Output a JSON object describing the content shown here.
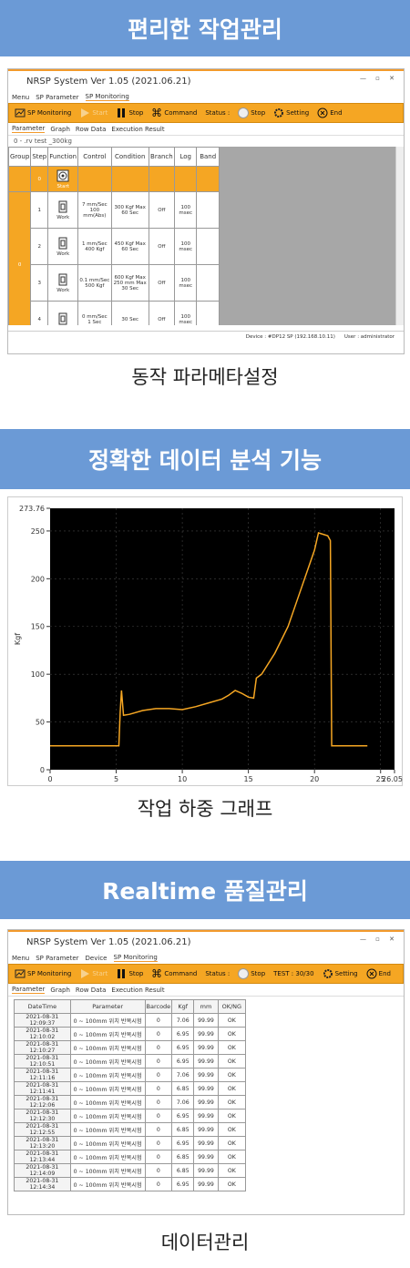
{
  "sections": [
    {
      "banner": "편리한 작업관리",
      "window": {
        "title": "NRSP System Ver 1.05 (2021.06.21)",
        "menu": [
          "Menu",
          "SP Parameter",
          "SP Monitoring"
        ],
        "toolbar": [
          "SP Monitoring",
          "Start",
          "Stop",
          "Command",
          "Status :",
          "Stop",
          "Setting",
          "End"
        ],
        "tabs": [
          "Parameter",
          "Graph",
          "Row Data",
          "Execution Result"
        ],
        "file": "0 - .rv test _300kg",
        "table": {
          "headers": [
            "Group",
            "Step",
            "Function",
            "Control",
            "Condition",
            "Branch",
            "Log",
            "Band"
          ],
          "group": "0",
          "rows": [
            {
              "step": "0",
              "function": "Start"
            },
            {
              "step": "1",
              "function": "Work",
              "control": "7 mm/Sec\n100 mm(Abs)",
              "condition": "300 Kgf Max\n60 Sec",
              "branch": "Off",
              "log": "100 msec"
            },
            {
              "step": "2",
              "function": "Work",
              "control": "1 mm/Sec\n400 Kgf",
              "condition": "450 Kgf Max\n60 Sec",
              "branch": "Off",
              "log": "100 msec"
            },
            {
              "step": "3",
              "function": "Work",
              "control": "0.1 mm/Sec\n500 Kgf",
              "condition": "600 Kgf Max\n250 mm Max\n30 Sec",
              "branch": "Off",
              "log": "100 msec"
            },
            {
              "step": "4",
              "control": "0 mm/Sec\n1 Sec",
              "condition": "30 Sec",
              "branch": "Off",
              "log": "100 msec"
            }
          ]
        },
        "status": [
          "Device : #DP12 SP (192.168.10.11)",
          "User : administrator"
        ]
      },
      "caption": "동작 파라메타설정"
    },
    {
      "banner": "정확한 데이터 분석 기능",
      "chart": {
        "type": "line",
        "ylabel": "Kgf",
        "color": "#f5a623",
        "x": [
          0,
          5.2,
          5.3,
          5.4,
          5.55,
          6,
          7,
          8,
          9,
          10,
          11,
          12,
          13,
          13.5,
          14,
          14.5,
          15,
          15.4,
          15.6,
          16,
          17,
          18,
          19,
          20,
          20.3,
          21,
          21.2,
          21.3,
          22,
          24
        ],
        "values": [
          25,
          25,
          60,
          83,
          57,
          58,
          62,
          64,
          64,
          63,
          66,
          70,
          74,
          78,
          83,
          80,
          76,
          75,
          96,
          100,
          122,
          150,
          190,
          230,
          248,
          245,
          240,
          25,
          25,
          25
        ],
        "xlim": [
          0,
          26.052
        ],
        "ylim": [
          0,
          273.76
        ],
        "xticks": [
          0,
          5,
          10,
          15,
          20,
          25,
          26.052
        ],
        "yticks": [
          0,
          50,
          100,
          150,
          200,
          250,
          273.76
        ]
      },
      "caption": "작업 하중 그래프"
    },
    {
      "banner": "Realtime 품질관리",
      "window": {
        "title": "NRSP System Ver 1.05 (2021.06.21)",
        "menu": [
          "Menu",
          "SP Parameter",
          "Device",
          "SP Monitoring"
        ],
        "toolbar": [
          "SP Monitoring",
          "Start",
          "Stop",
          "Command",
          "Status :",
          "Stop",
          "TEST : 30/30",
          "Setting",
          "End"
        ],
        "tabs": [
          "Parameter",
          "Graph",
          "Row Data",
          "Execution Result"
        ],
        "table": {
          "headers": [
            "DateTime",
            "Parameter",
            "Barcode",
            "Kgf",
            "mm",
            "OK/NG"
          ],
          "rows": [
            [
              "2021-08-31  12:09:37",
              "0 ~ 100mm 위치 반복시험",
              "0",
              "7.06",
              "99.99",
              "OK"
            ],
            [
              "2021-08-31  12:10:02",
              "0 ~ 100mm 위치 반복시험",
              "0",
              "6.95",
              "99.99",
              "OK"
            ],
            [
              "2021-08-31  12:10:27",
              "0 ~ 100mm 위치 반복시험",
              "0",
              "6.95",
              "99.99",
              "OK"
            ],
            [
              "2021-08-31  12:10:51",
              "0 ~ 100mm 위치 반복시험",
              "0",
              "6.95",
              "99.99",
              "OK"
            ],
            [
              "2021-08-31  12:11:16",
              "0 ~ 100mm 위치 반복시험",
              "0",
              "7.06",
              "99.99",
              "OK"
            ],
            [
              "2021-08-31  12:11:41",
              "0 ~ 100mm 위치 반복시험",
              "0",
              "6.85",
              "99.99",
              "OK"
            ],
            [
              "2021-08-31  12:12:06",
              "0 ~ 100mm 위치 반복시험",
              "0",
              "7.06",
              "99.99",
              "OK"
            ],
            [
              "2021-08-31  12:12:30",
              "0 ~ 100mm 위치 반복시험",
              "0",
              "6.95",
              "99.99",
              "OK"
            ],
            [
              "2021-08-31  12:12:55",
              "0 ~ 100mm 위치 반복시험",
              "0",
              "6.85",
              "99.99",
              "OK"
            ],
            [
              "2021-08-31  12:13:20",
              "0 ~ 100mm 위치 반복시험",
              "0",
              "6.95",
              "99.99",
              "OK"
            ],
            [
              "2021-08-31  12:13:44",
              "0 ~ 100mm 위치 반복시험",
              "0",
              "6.85",
              "99.99",
              "OK"
            ],
            [
              "2021-08-31  12:14:09",
              "0 ~ 100mm 위치 반복시험",
              "0",
              "6.85",
              "99.99",
              "OK"
            ],
            [
              "2021-08-31  12:14:34",
              "0 ~ 100mm 위치 반복시험",
              "0",
              "6.95",
              "99.99",
              "OK"
            ]
          ]
        }
      },
      "caption": "데이터관리"
    }
  ]
}
